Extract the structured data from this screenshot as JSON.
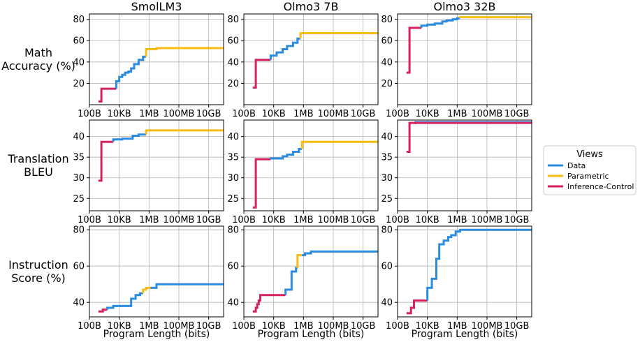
{
  "colors": {
    "Data": "#2a8be0",
    "Parametric": "#f9bc15",
    "Inference-Control": "#d7215f"
  },
  "legend": {
    "title": "Views",
    "items": [
      {
        "label": "Data",
        "color": "#2a8be0"
      },
      {
        "label": "Parametric",
        "color": "#f9bc15"
      },
      {
        "label": "Inference-Control",
        "color": "#d7215f"
      }
    ]
  },
  "columns": [
    "SmolLM3",
    "Olmo3 7B",
    "Olmo3 32B"
  ],
  "rows": [
    {
      "label": "Math\nAccuracy (%)",
      "ylim": [
        0,
        85
      ],
      "yticks": [
        20,
        40,
        60,
        80
      ]
    },
    {
      "label": "Translation\nBLEU",
      "ylim": [
        22,
        44
      ],
      "yticks": [
        25,
        30,
        35,
        40
      ]
    },
    {
      "label": "Instruction\nScore (%)",
      "ylim": [
        32,
        82
      ],
      "yticks": [
        40,
        60,
        80
      ]
    }
  ],
  "x_axis": {
    "label": "Program Length (bits)",
    "scale": "log10",
    "xlim": [
      2,
      11
    ],
    "ticks": [
      2,
      4,
      6,
      8,
      10
    ],
    "tick_labels": [
      "100B",
      "10KB",
      "1MB",
      "100MB",
      "10GB"
    ]
  },
  "chart_data": [
    {
      "type": "line",
      "title": "SmolLM3 - Math Accuracy (%)",
      "series": [
        {
          "name": "Inference-Control",
          "x": [
            2.6,
            2.8,
            2.8,
            3.8
          ],
          "y": [
            3,
            3,
            15,
            15
          ]
        },
        {
          "name": "Data",
          "x": [
            3.8,
            3.8,
            4.0,
            4.0,
            4.2,
            4.2,
            4.4,
            4.4,
            4.6,
            4.6,
            4.8,
            4.8,
            5.0,
            5.0,
            5.3,
            5.3,
            5.6,
            5.6,
            5.8
          ],
          "y": [
            15,
            22,
            22,
            26,
            26,
            28,
            28,
            30,
            30,
            31,
            31,
            34,
            34,
            38,
            38,
            42,
            42,
            45,
            45
          ]
        },
        {
          "name": "Parametric",
          "x": [
            5.8,
            5.8,
            6.5,
            6.5,
            11
          ],
          "y": [
            45,
            52,
            52,
            53,
            53
          ]
        }
      ]
    },
    {
      "type": "line",
      "title": "Olmo3 7B - Math Accuracy (%)",
      "series": [
        {
          "name": "Inference-Control",
          "x": [
            2.6,
            2.8,
            2.8,
            3.8
          ],
          "y": [
            16,
            16,
            42,
            42
          ]
        },
        {
          "name": "Data",
          "x": [
            3.8,
            3.8,
            4.2,
            4.2,
            4.6,
            4.6,
            4.9,
            4.9,
            5.3,
            5.3,
            5.6,
            5.6,
            5.8
          ],
          "y": [
            42,
            46,
            46,
            49,
            49,
            52,
            52,
            55,
            55,
            58,
            58,
            62,
            62
          ]
        },
        {
          "name": "Parametric",
          "x": [
            5.8,
            5.8,
            11
          ],
          "y": [
            62,
            67,
            67
          ]
        }
      ]
    },
    {
      "type": "line",
      "title": "Olmo3 32B - Math Accuracy (%)",
      "series": [
        {
          "name": "Inference-Control",
          "x": [
            2.6,
            2.8,
            2.8,
            2.8,
            3.6
          ],
          "y": [
            30,
            30,
            70,
            72,
            72
          ]
        },
        {
          "name": "Data",
          "x": [
            3.6,
            3.6,
            4.0,
            4.0,
            4.5,
            4.5,
            5.0,
            5.0,
            5.3,
            5.3,
            5.7,
            5.7,
            6.0,
            6.0,
            6.2
          ],
          "y": [
            72,
            74,
            74,
            75,
            75,
            76,
            76,
            78,
            78,
            79,
            79,
            80,
            80,
            81,
            81
          ]
        },
        {
          "name": "Parametric",
          "x": [
            6.2,
            6.2,
            11
          ],
          "y": [
            81,
            82,
            82
          ]
        }
      ]
    },
    {
      "type": "line",
      "title": "SmolLM3 - Translation BLEU",
      "series": [
        {
          "name": "Inference-Control",
          "x": [
            2.6,
            2.8,
            2.8,
            3.6
          ],
          "y": [
            29.3,
            29.3,
            38.7,
            38.7
          ]
        },
        {
          "name": "Data",
          "x": [
            3.6,
            3.6,
            4.2,
            4.2,
            4.9,
            4.9,
            5.3,
            5.3,
            5.8
          ],
          "y": [
            38.7,
            39.3,
            39.3,
            39.5,
            39.5,
            40.2,
            40.2,
            40.5,
            40.5
          ]
        },
        {
          "name": "Parametric",
          "x": [
            5.8,
            5.8,
            11
          ],
          "y": [
            40.5,
            41.5,
            41.5
          ]
        }
      ]
    },
    {
      "type": "line",
      "title": "Olmo3 7B - Translation BLEU",
      "series": [
        {
          "name": "Inference-Control",
          "x": [
            2.6,
            2.8,
            2.8,
            3.8
          ],
          "y": [
            22.8,
            22.8,
            34.5,
            34.5
          ]
        },
        {
          "name": "Data",
          "x": [
            3.8,
            3.8,
            4.6,
            4.6,
            4.9,
            4.9,
            5.3,
            5.3,
            5.7,
            5.7,
            5.9
          ],
          "y": [
            34.5,
            34.7,
            34.7,
            35.2,
            35.2,
            35.6,
            35.6,
            36.3,
            36.3,
            37.0,
            37.0
          ]
        },
        {
          "name": "Parametric",
          "x": [
            5.9,
            5.9,
            11
          ],
          "y": [
            37.0,
            38.7,
            38.7
          ]
        }
      ]
    },
    {
      "type": "line",
      "title": "Olmo3 32B - Translation BLEU",
      "series": [
        {
          "name": "Data",
          "x": [
            3.2,
            3.2,
            11
          ],
          "y": [
            43.0,
            43.5,
            43.5
          ]
        },
        {
          "name": "Inference-Control",
          "x": [
            2.6,
            2.8,
            2.8,
            11
          ],
          "y": [
            36.3,
            36.3,
            43.3,
            43.3
          ]
        }
      ]
    },
    {
      "type": "line",
      "title": "SmolLM3 - Instruction Score (%)",
      "series": [
        {
          "name": "Inference-Control",
          "x": [
            2.6,
            2.9,
            2.9,
            3.2
          ],
          "y": [
            35,
            35,
            36,
            36
          ]
        },
        {
          "name": "Data",
          "x": [
            3.2,
            3.2,
            3.6,
            3.6,
            3.8,
            3.8,
            4.8,
            4.8,
            5.1,
            5.1,
            5.4,
            5.4,
            5.6
          ],
          "y": [
            36,
            37,
            37,
            38,
            38,
            38,
            38,
            42,
            42,
            44,
            44,
            45,
            45
          ]
        },
        {
          "name": "Parametric",
          "x": [
            5.6,
            5.6,
            5.8,
            5.8,
            6.1
          ],
          "y": [
            45,
            47,
            47,
            48,
            48
          ]
        },
        {
          "name": "Data",
          "x": [
            6.1,
            6.1,
            6.5,
            6.5,
            11
          ],
          "y": [
            48,
            48,
            48,
            50,
            50
          ]
        }
      ]
    },
    {
      "type": "line",
      "title": "Olmo3 7B - Instruction Score (%)",
      "series": [
        {
          "name": "Inference-Control",
          "x": [
            2.6,
            2.8,
            2.8,
            2.9,
            2.9,
            3.0,
            3.0,
            3.1,
            3.1,
            4.8
          ],
          "y": [
            35,
            35,
            37,
            37,
            39,
            39,
            41,
            41,
            44,
            44
          ]
        },
        {
          "name": "Data",
          "x": [
            4.8,
            4.8,
            5.2,
            5.2,
            5.5,
            5.5,
            5.6
          ],
          "y": [
            44,
            47,
            47,
            57,
            57,
            59,
            59
          ]
        },
        {
          "name": "Parametric",
          "x": [
            5.6,
            5.6,
            5.9
          ],
          "y": [
            59,
            66,
            66
          ]
        },
        {
          "name": "Data",
          "x": [
            5.9,
            6.1,
            6.1,
            6.5,
            6.5,
            11
          ],
          "y": [
            66,
            66,
            67,
            67,
            68,
            68
          ]
        }
      ]
    },
    {
      "type": "line",
      "title": "Olmo3 32B - Instruction Score (%)",
      "series": [
        {
          "name": "Inference-Control",
          "x": [
            2.6,
            2.9,
            2.9,
            3.1,
            3.1,
            4.0
          ],
          "y": [
            34,
            34,
            37,
            37,
            41,
            41
          ]
        },
        {
          "name": "Data",
          "x": [
            4.0,
            4.0,
            4.3,
            4.3,
            4.6,
            4.6,
            4.8,
            4.8,
            5.1,
            5.1,
            5.4,
            5.4,
            5.6,
            5.6,
            5.9,
            5.9,
            6.2,
            6.2,
            11
          ],
          "y": [
            41,
            48,
            48,
            53,
            53,
            64,
            64,
            72,
            72,
            74,
            74,
            76,
            76,
            77,
            77,
            79,
            79,
            80,
            80
          ]
        }
      ]
    }
  ]
}
